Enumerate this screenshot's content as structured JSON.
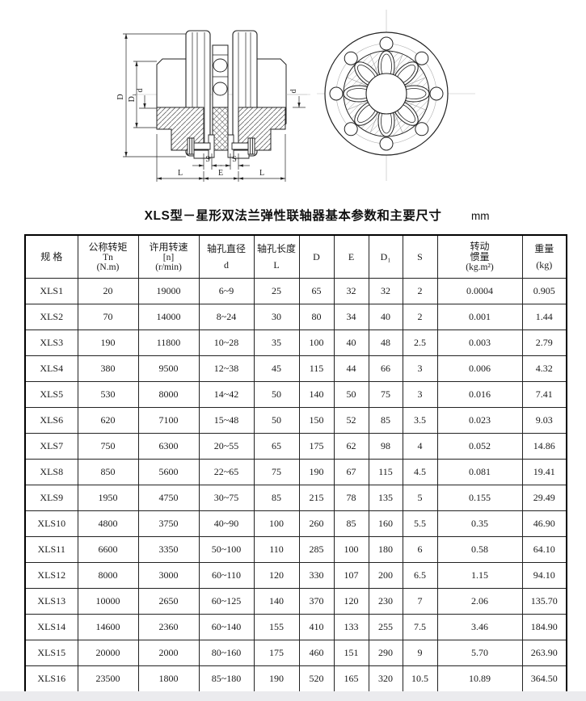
{
  "page": {
    "title": "XLS型－星形双法兰弹性联轴器基本参数和主要尺寸",
    "unit_label": "mm"
  },
  "drawing": {
    "labels": {
      "D": "D",
      "D1": "D₁",
      "d_left": "d",
      "d_right": "d",
      "S_left": "S",
      "S_right": "S",
      "L_left": "L",
      "E": "E",
      "L_right": "L"
    }
  },
  "table": {
    "headers": [
      {
        "lines": [
          "规  格"
        ]
      },
      {
        "lines": [
          "公称转矩",
          "Tn",
          "(N.m)"
        ]
      },
      {
        "lines": [
          "许用转速",
          "[n]",
          "(r/min)"
        ]
      },
      {
        "lines": [
          "轴孔直径",
          "d"
        ]
      },
      {
        "lines": [
          "轴孔长度",
          "L"
        ]
      },
      {
        "lines": [
          "D"
        ]
      },
      {
        "lines": [
          "E"
        ]
      },
      {
        "lines": [
          "D₁"
        ]
      },
      {
        "lines": [
          "S"
        ]
      },
      {
        "lines": [
          "转动",
          "惯量",
          "(kg.m²)"
        ]
      },
      {
        "lines": [
          "重量",
          "(kg)"
        ]
      }
    ],
    "rows": [
      [
        "XLS1",
        "20",
        "19000",
        "6~9",
        "25",
        "65",
        "32",
        "32",
        "2",
        "0.0004",
        "0.905"
      ],
      [
        "XLS2",
        "70",
        "14000",
        "8~24",
        "30",
        "80",
        "34",
        "40",
        "2",
        "0.001",
        "1.44"
      ],
      [
        "XLS3",
        "190",
        "11800",
        "10~28",
        "35",
        "100",
        "40",
        "48",
        "2.5",
        "0.003",
        "2.79"
      ],
      [
        "XLS4",
        "380",
        "9500",
        "12~38",
        "45",
        "115",
        "44",
        "66",
        "3",
        "0.006",
        "4.32"
      ],
      [
        "XLS5",
        "530",
        "8000",
        "14~42",
        "50",
        "140",
        "50",
        "75",
        "3",
        "0.016",
        "7.41"
      ],
      [
        "XLS6",
        "620",
        "7100",
        "15~48",
        "50",
        "150",
        "52",
        "85",
        "3.5",
        "0.023",
        "9.03"
      ],
      [
        "XLS7",
        "750",
        "6300",
        "20~55",
        "65",
        "175",
        "62",
        "98",
        "4",
        "0.052",
        "14.86"
      ],
      [
        "XLS8",
        "850",
        "5600",
        "22~65",
        "75",
        "190",
        "67",
        "115",
        "4.5",
        "0.081",
        "19.41"
      ],
      [
        "XLS9",
        "1950",
        "4750",
        "30~75",
        "85",
        "215",
        "78",
        "135",
        "5",
        "0.155",
        "29.49"
      ],
      [
        "XLS10",
        "4800",
        "3750",
        "40~90",
        "100",
        "260",
        "85",
        "160",
        "5.5",
        "0.35",
        "46.90"
      ],
      [
        "XLS11",
        "6600",
        "3350",
        "50~100",
        "110",
        "285",
        "100",
        "180",
        "6",
        "0.58",
        "64.10"
      ],
      [
        "XLS12",
        "8000",
        "3000",
        "60~110",
        "120",
        "330",
        "107",
        "200",
        "6.5",
        "1.15",
        "94.10"
      ],
      [
        "XLS13",
        "10000",
        "2650",
        "60~125",
        "140",
        "370",
        "120",
        "230",
        "7",
        "2.06",
        "135.70"
      ],
      [
        "XLS14",
        "14600",
        "2360",
        "60~140",
        "155",
        "410",
        "133",
        "255",
        "7.5",
        "3.46",
        "184.90"
      ],
      [
        "XLS15",
        "20000",
        "2000",
        "80~160",
        "175",
        "460",
        "151",
        "290",
        "9",
        "5.70",
        "263.90"
      ],
      [
        "XLS16",
        "23500",
        "1800",
        "85~180",
        "190",
        "520",
        "165",
        "320",
        "10.5",
        "10.89",
        "364.50"
      ]
    ]
  }
}
